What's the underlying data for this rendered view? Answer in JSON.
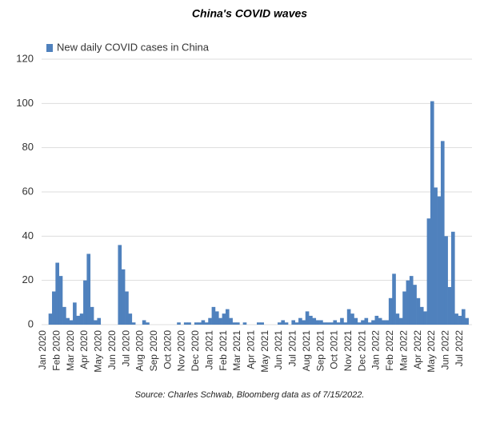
{
  "chart_data": {
    "type": "bar",
    "title": "China's COVID waves",
    "source": "Source: Charles Schwab, Bloomberg data as of 7/15/2022.",
    "series": [
      {
        "name": "New daily COVID cases in China",
        "color": "#4f81bd",
        "values": [
          0,
          0,
          5,
          15,
          28,
          22,
          8,
          3,
          2,
          10,
          4,
          5,
          20,
          32,
          8,
          2,
          3,
          0,
          0,
          0,
          0,
          0,
          36,
          25,
          15,
          5,
          1,
          0,
          0,
          2,
          1,
          0,
          0,
          0,
          0,
          0,
          0,
          0,
          0,
          1,
          0,
          1,
          1,
          0,
          1,
          1,
          2,
          1,
          3,
          8,
          6,
          3,
          5,
          7,
          3,
          1,
          1,
          0,
          1,
          0,
          0,
          0,
          1,
          1,
          0,
          0,
          0,
          0,
          1,
          2,
          1,
          0,
          2,
          1,
          3,
          2,
          6,
          4,
          3,
          2,
          2,
          1,
          1,
          1,
          2,
          1,
          3,
          1,
          7,
          5,
          3,
          1,
          2,
          3,
          1,
          2,
          4,
          3,
          2,
          2,
          12,
          23,
          5,
          3,
          15,
          20,
          22,
          18,
          12,
          8,
          6,
          48,
          101,
          62,
          58,
          83,
          40,
          17,
          42,
          5,
          4,
          7,
          3,
          0
        ]
      }
    ],
    "categories": [
      "Jan 2020",
      null,
      null,
      null,
      "Feb 2020",
      null,
      null,
      null,
      "Mar 2020",
      null,
      null,
      null,
      "Apr 2020",
      null,
      null,
      null,
      "May 2020",
      null,
      null,
      null,
      "Jun 2020",
      null,
      null,
      null,
      "Jul 2020",
      null,
      null,
      null,
      "Aug 2020",
      null,
      null,
      null,
      "Sep 2020",
      null,
      null,
      null,
      "Oct 2020",
      null,
      null,
      null,
      "Nov 2020",
      null,
      null,
      null,
      "Dec 2020",
      null,
      null,
      null,
      "Jan 2021",
      null,
      null,
      null,
      "Feb 2021",
      null,
      null,
      null,
      "Mar 2021",
      null,
      null,
      null,
      "Apr 2021",
      null,
      null,
      null,
      "May 2021",
      null,
      null,
      null,
      "Jun 2021",
      null,
      null,
      null,
      "Jul 2021",
      null,
      null,
      null,
      "Aug 2021",
      null,
      null,
      null,
      "Sep 2021",
      null,
      null,
      null,
      "Oct 2021",
      null,
      null,
      null,
      "Nov 2021",
      null,
      null,
      null,
      "Dec 2021",
      null,
      null,
      null,
      "Jan 2022",
      null,
      null,
      null,
      "Feb 2022",
      null,
      null,
      null,
      "Mar 2022",
      null,
      null,
      null,
      "Apr 2022",
      null,
      null,
      null,
      "May 2022",
      null,
      null,
      null,
      "Jun 2022",
      null,
      null,
      null,
      "Jul 2022",
      null,
      null,
      null
    ],
    "ylim": [
      0,
      120
    ],
    "yticks": [
      0,
      20,
      40,
      60,
      80,
      100,
      120
    ],
    "grid": true,
    "legend": "top-left"
  }
}
